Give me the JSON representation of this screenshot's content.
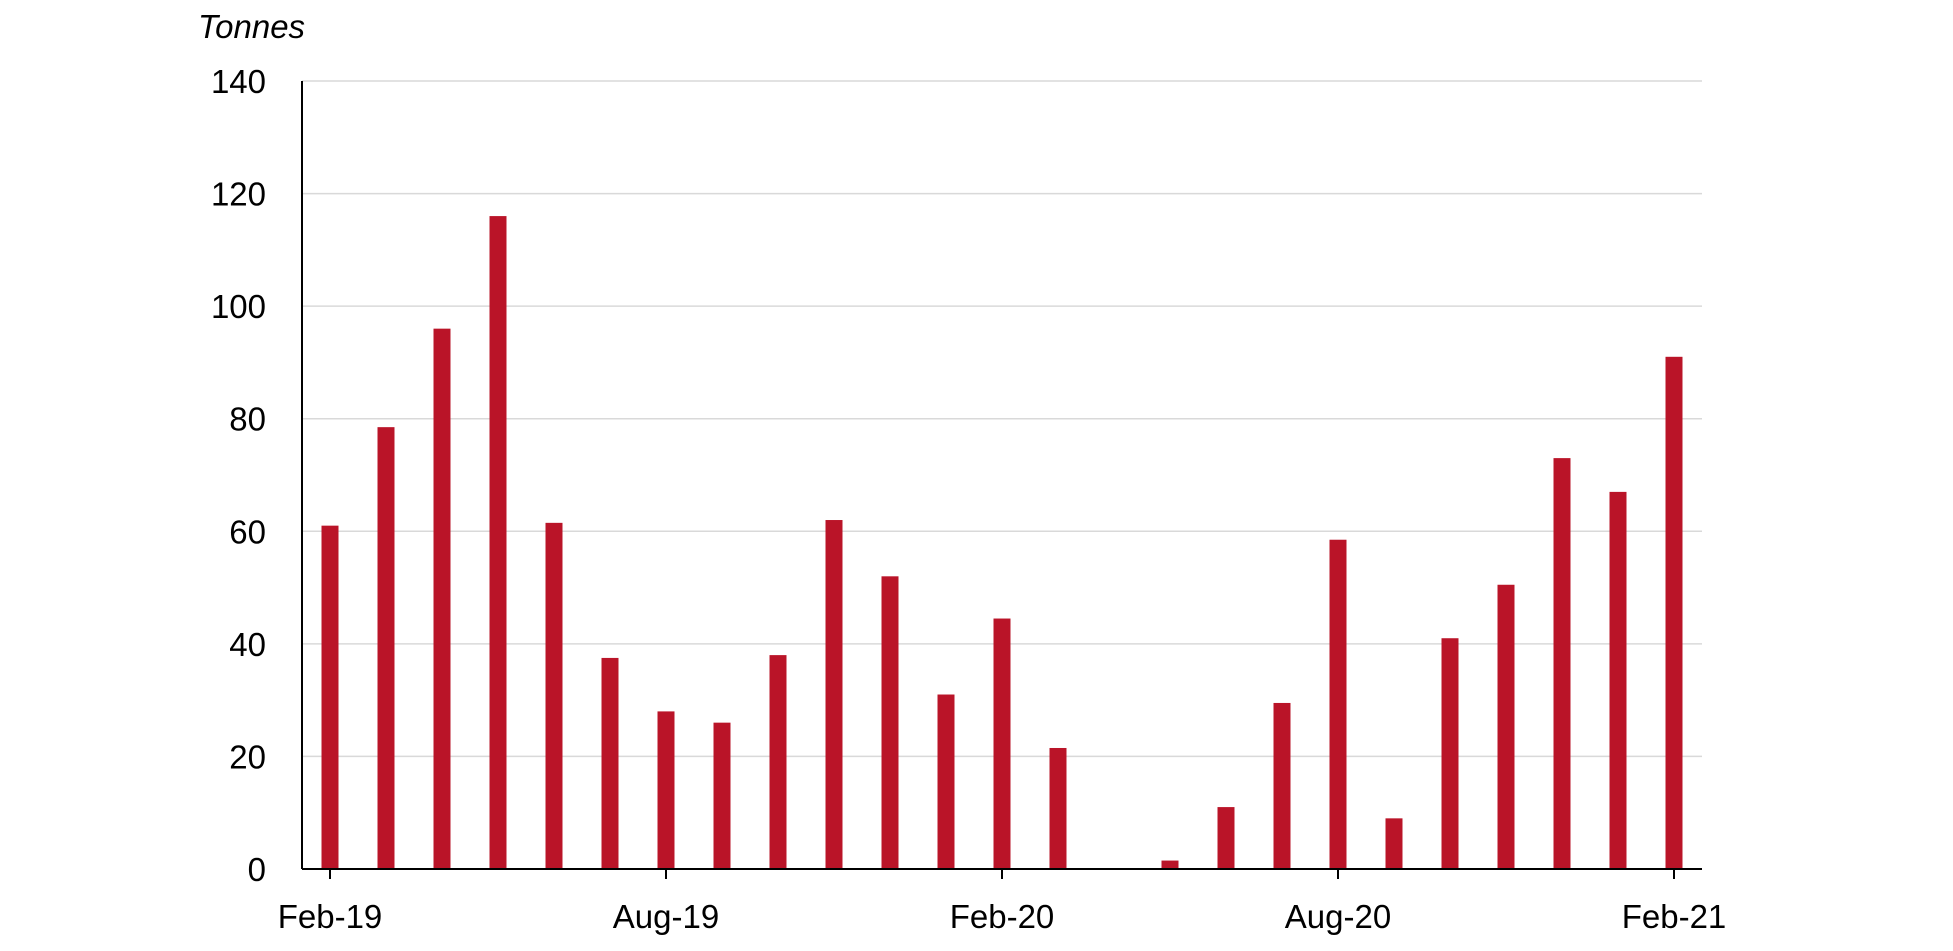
{
  "chart_data": {
    "type": "bar",
    "title": "",
    "xlabel": "",
    "ylabel": "Tonnes",
    "ylim": [
      0,
      140
    ],
    "y_ticks": [
      "0",
      "20",
      "40",
      "60",
      "80",
      "100",
      "120",
      "140"
    ],
    "x_tick_labels": [
      "Feb-19",
      "Aug-19",
      "Feb-20",
      "Aug-20",
      "Feb-21"
    ],
    "categories": [
      "Feb-19",
      "Mar-19",
      "Apr-19",
      "May-19",
      "Jun-19",
      "Jul-19",
      "Aug-19",
      "Sep-19",
      "Oct-19",
      "Nov-19",
      "Dec-19",
      "Jan-20",
      "Feb-20",
      "Mar-20",
      "Apr-20",
      "May-20",
      "Jun-20",
      "Jul-20",
      "Aug-20",
      "Sep-20",
      "Oct-20",
      "Nov-20",
      "Dec-20",
      "Jan-21",
      "Feb-21"
    ],
    "values": [
      61,
      78.5,
      96,
      116,
      61.5,
      37.5,
      28,
      26,
      38,
      62,
      52,
      31,
      44.5,
      21.5,
      0,
      1.5,
      11,
      29.5,
      58.5,
      9,
      41,
      50.5,
      73,
      67,
      91
    ],
    "grid": true,
    "legend": "none",
    "bar_color": "#ba1428",
    "grid_color": "#d9d9d9",
    "axis_color": "#000000"
  }
}
